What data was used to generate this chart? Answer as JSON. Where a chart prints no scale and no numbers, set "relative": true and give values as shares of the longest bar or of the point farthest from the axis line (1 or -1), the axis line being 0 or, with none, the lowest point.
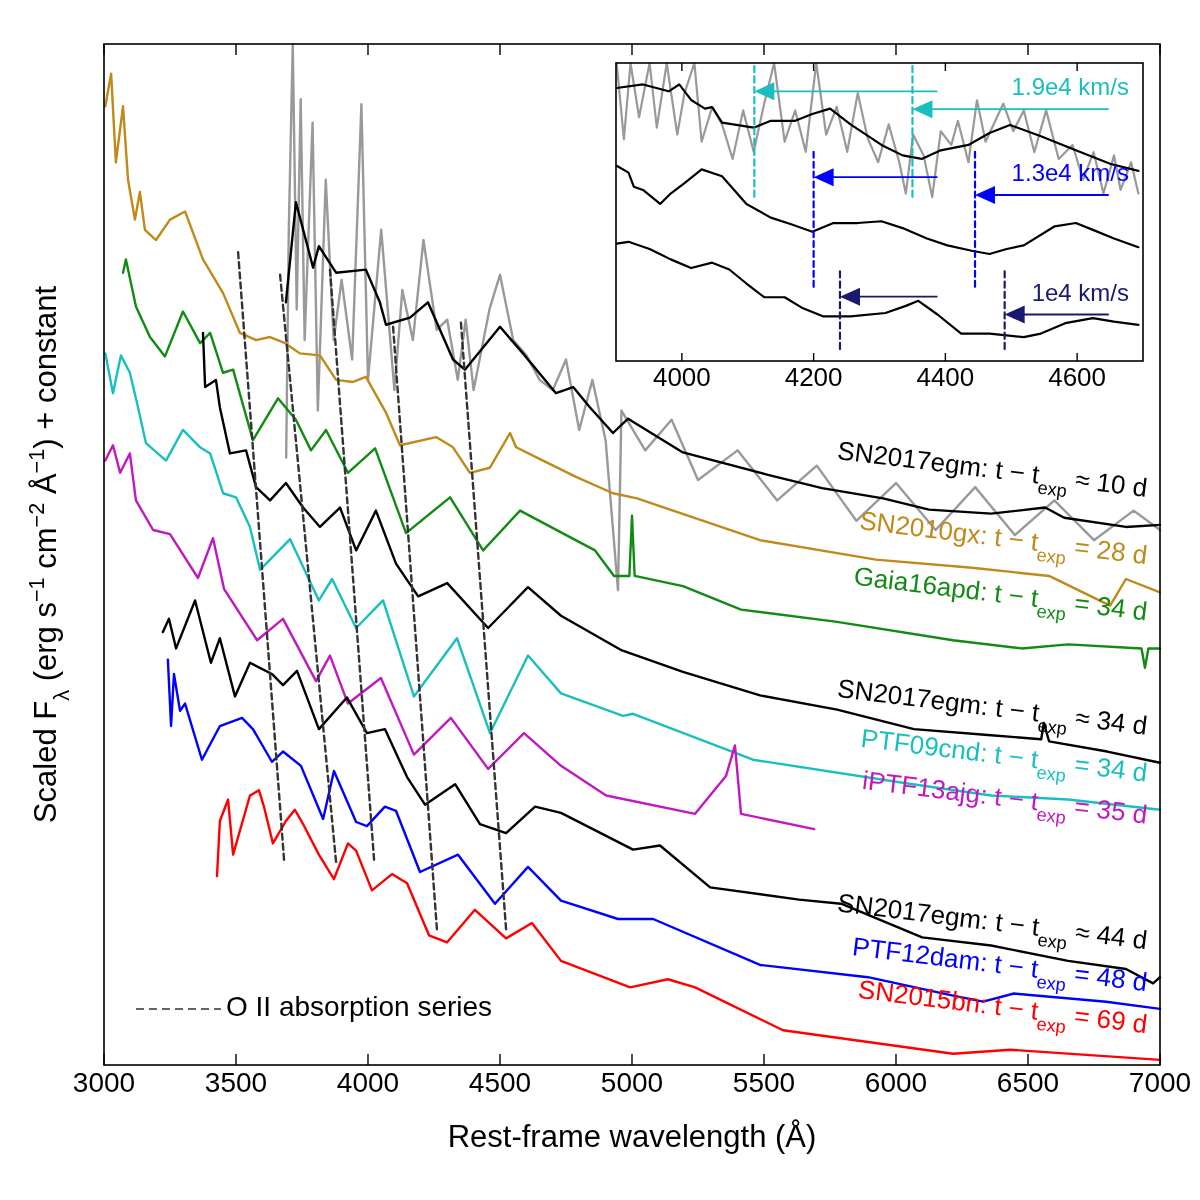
{
  "chart_data": [
    {
      "type": "line",
      "relative": true,
      "xlim": [
        3000,
        7000
      ],
      "xticks": [
        3000,
        3500,
        4000,
        4500,
        5000,
        5500,
        6000,
        6500,
        7000
      ],
      "xlabel": "Rest-frame wavelength (Å)",
      "ylabel": "Scaled F$_{λ}$ (erg s$^{−1}$ cm$^{−2}$ Å$^{−1}$) + constant",
      "legend": "bottom left",
      "series": [
        {
          "color": "#999999",
          "x": [
            3690,
            3700,
            3715,
            3730,
            3745,
            3760,
            3790,
            3810,
            3840,
            3870,
            3900,
            3940,
            3975,
            4000,
            4050,
            4100,
            4130,
            4170,
            4210,
            4260,
            4300,
            4340,
            4370,
            4400,
            4460,
            4500,
            4550,
            4600,
            4650,
            4700,
            4750,
            4800,
            4850,
            4900,
            4947,
            4960,
            5050,
            5150,
            5250,
            5400,
            5550,
            5700,
            5850,
            6000,
            6150,
            6300,
            6450,
            6600,
            6750,
            6900,
            7000
          ],
          "values": [
            0.595,
            0.818,
            1,
            0.74,
            0.946,
            0.71,
            0.923,
            0.641,
            0.867,
            0.71,
            0.769,
            0.691,
            0.941,
            0.671,
            0.818,
            0.661,
            0.759,
            0.71,
            0.808,
            0.72,
            0.73,
            0.671,
            0.73,
            0.661,
            0.74,
            0.774,
            0.71,
            0.695,
            0.671,
            0.661,
            0.691,
            0.622,
            0.671,
            0.612,
            0.465,
            0.641,
            0.602,
            0.632,
            0.573,
            0.602,
            0.553,
            0.587,
            0.533,
            0.57,
            0.524,
            0.566,
            0.519,
            0.553,
            0.514,
            0.543,
            0.524
          ]
        },
        {
          "name": "SN2017egm: t − t$_{exp}$ ≈ 10 d",
          "color": "#000000",
          "x": [
            3689,
            3727,
            3792,
            3814,
            3879,
            3992,
            4045,
            4068,
            4159,
            4227,
            4322,
            4367,
            4500,
            4587,
            4712,
            4777,
            4841,
            4928,
            4985,
            5193,
            5515,
            5720,
            5951,
            6125,
            6360,
            6565,
            6637,
            6871,
            7000
          ],
          "values": [
            0.747,
            0.845,
            0.781,
            0.802,
            0.776,
            0.779,
            0.747,
            0.725,
            0.732,
            0.747,
            0.691,
            0.681,
            0.723,
            0.697,
            0.658,
            0.664,
            0.644,
            0.619,
            0.633,
            0.6,
            0.578,
            0.565,
            0.555,
            0.544,
            0.54,
            0.546,
            0.536,
            0.527,
            0.529
          ]
        },
        {
          "name": "SN2010gx: t − t$_{exp}$ = 28 d",
          "color": "#c08a1a",
          "x": [
            3005,
            3027,
            3045,
            3072,
            3091,
            3117,
            3136,
            3155,
            3197,
            3250,
            3307,
            3375,
            3451,
            3515,
            3576,
            3629,
            3686,
            3742,
            3818,
            3879,
            3943,
            3992,
            4068,
            4121,
            4258,
            4322,
            4386,
            4462,
            4538,
            4561,
            4663,
            4788,
            4928,
            5019,
            5485,
            5924,
            6288,
            6580,
            6811,
            6871,
            7000
          ],
          "values": [
            0.939,
            0.971,
            0.884,
            0.939,
            0.867,
            0.828,
            0.855,
            0.818,
            0.808,
            0.828,
            0.836,
            0.789,
            0.756,
            0.717,
            0.71,
            0.713,
            0.707,
            0.697,
            0.695,
            0.671,
            0.669,
            0.674,
            0.639,
            0.607,
            0.615,
            0.605,
            0.58,
            0.585,
            0.619,
            0.605,
            0.592,
            0.576,
            0.56,
            0.555,
            0.514,
            0.495,
            0.487,
            0.479,
            0.45,
            0.476,
            0.463
          ]
        },
        {
          "name": "Gaia16apd: t − t$_{exp}$ = 34 d",
          "color": "#138a13",
          "x": [
            3072,
            3083,
            3121,
            3174,
            3231,
            3299,
            3364,
            3402,
            3451,
            3489,
            3564,
            3659,
            3727,
            3784,
            3841,
            3924,
            4027,
            4144,
            4311,
            4436,
            4576,
            4765,
            4860,
            4932,
            4990,
            5000,
            5010,
            5193,
            5413,
            5777,
            6216,
            6477,
            6652,
            6930,
            6943,
            6956,
            7000
          ],
          "values": [
            0.776,
            0.789,
            0.743,
            0.713,
            0.694,
            0.738,
            0.707,
            0.717,
            0.678,
            0.681,
            0.612,
            0.653,
            0.632,
            0.602,
            0.622,
            0.58,
            0.604,
            0.521,
            0.556,
            0.504,
            0.543,
            0.517,
            0.504,
            0.479,
            0.479,
            0.538,
            0.479,
            0.469,
            0.446,
            0.434,
            0.416,
            0.408,
            0.412,
            0.408,
            0.389,
            0.408,
            0.408
          ]
        },
        {
          "name": "SN2017egm: t − t$_{exp}$ ≈ 34 d",
          "color": "#000000",
          "x": [
            3375,
            3383,
            3424,
            3439,
            3477,
            3538,
            3576,
            3629,
            3689,
            3754,
            3818,
            3894,
            3955,
            4030,
            4106,
            4190,
            4300,
            4455,
            4606,
            4731,
            4962,
            5193,
            5485,
            5777,
            6068,
            6360,
            6550,
            6560,
            6580,
            6800,
            7000
          ],
          "values": [
            0.717,
            0.664,
            0.671,
            0.644,
            0.599,
            0.602,
            0.566,
            0.553,
            0.57,
            0.546,
            0.527,
            0.546,
            0.504,
            0.543,
            0.491,
            0.459,
            0.472,
            0.428,
            0.468,
            0.44,
            0.406,
            0.385,
            0.362,
            0.348,
            0.329,
            0.323,
            0.319,
            0.335,
            0.317,
            0.307,
            0.296
          ]
        },
        {
          "name": "PTF09cnd: t − t$_{exp}$ = 34 d",
          "color": "#19bfbf",
          "x": [
            3005,
            3034,
            3064,
            3098,
            3129,
            3159,
            3235,
            3299,
            3364,
            3402,
            3451,
            3500,
            3553,
            3591,
            3705,
            3814,
            3864,
            3955,
            4057,
            4174,
            4337,
            4462,
            4606,
            4731,
            4966,
            5004,
            5458,
            6038,
            6360,
            6652,
            7000
          ],
          "values": [
            0.697,
            0.658,
            0.695,
            0.678,
            0.644,
            0.609,
            0.592,
            0.622,
            0.605,
            0.599,
            0.56,
            0.556,
            0.527,
            0.485,
            0.515,
            0.455,
            0.476,
            0.428,
            0.455,
            0.361,
            0.418,
            0.325,
            0.401,
            0.364,
            0.342,
            0.344,
            0.299,
            0.276,
            0.264,
            0.26,
            0.25
          ]
        },
        {
          "name": "iPTF13ajg: t − t$_{exp}$ = 35 d",
          "color": "#bf19bf",
          "x": [
            3005,
            3034,
            3061,
            3098,
            3121,
            3186,
            3250,
            3356,
            3413,
            3455,
            3580,
            3678,
            3803,
            3856,
            3924,
            4049,
            4174,
            4314,
            4455,
            4591,
            4731,
            4902,
            5239,
            5356,
            5390,
            5413,
            5690
          ],
          "values": [
            0.592,
            0.607,
            0.58,
            0.599,
            0.553,
            0.524,
            0.52,
            0.477,
            0.516,
            0.466,
            0.416,
            0.437,
            0.376,
            0.401,
            0.354,
            0.379,
            0.304,
            0.34,
            0.29,
            0.325,
            0.293,
            0.264,
            0.246,
            0.283,
            0.313,
            0.246,
            0.231
          ]
        },
        {
          "name": "SN2017egm: t − t$_{exp}$ ≈ 44 d",
          "color": "#000000",
          "x": [
            3223,
            3246,
            3273,
            3345,
            3405,
            3439,
            3496,
            3553,
            3636,
            3678,
            3731,
            3814,
            3920,
            3996,
            4064,
            4148,
            4216,
            4330,
            4424,
            4523,
            4633,
            4731,
            5004,
            5106,
            5296,
            5633,
            5792,
            6099,
            6360,
            6652,
            6871,
            6974,
            7000
          ],
          "values": [
            0.424,
            0.437,
            0.408,
            0.455,
            0.394,
            0.418,
            0.361,
            0.394,
            0.383,
            0.372,
            0.386,
            0.329,
            0.36,
            0.325,
            0.329,
            0.282,
            0.255,
            0.275,
            0.236,
            0.227,
            0.253,
            0.247,
            0.211,
            0.215,
            0.174,
            0.162,
            0.158,
            0.125,
            0.117,
            0.102,
            0.094,
            0.08,
            0.086
          ]
        },
        {
          "name": "PTF12dam: t − t$_{exp}$ = 48 d",
          "color": "#0000ff",
          "x": [
            3242,
            3254,
            3265,
            3288,
            3307,
            3371,
            3439,
            3523,
            3564,
            3636,
            3678,
            3746,
            3830,
            3871,
            3955,
            3996,
            4064,
            4106,
            4197,
            4341,
            4481,
            4606,
            4731,
            4947,
            5080,
            5485,
            5894,
            6216,
            6330,
            6447,
            6796,
            7000
          ],
          "values": [
            0.397,
            0.332,
            0.383,
            0.347,
            0.354,
            0.299,
            0.332,
            0.34,
            0.329,
            0.297,
            0.307,
            0.293,
            0.241,
            0.288,
            0.238,
            0.234,
            0.253,
            0.249,
            0.189,
            0.206,
            0.158,
            0.194,
            0.161,
            0.143,
            0.143,
            0.098,
            0.086,
            0.068,
            0.062,
            0.07,
            0.062,
            0.055
          ]
        },
        {
          "name": "SN2015bn: t − t$_{exp}$ = 69 d",
          "color": "#ff0000",
          "x": [
            3428,
            3439,
            3470,
            3489,
            3553,
            3587,
            3606,
            3640,
            3689,
            3723,
            3754,
            3814,
            3871,
            3924,
            3955,
            4015,
            4091,
            4148,
            4231,
            4299,
            4405,
            4523,
            4621,
            4731,
            4993,
            5136,
            5239,
            5572,
            6216,
            6432,
            7000
          ],
          "values": [
            0.185,
            0.239,
            0.26,
            0.206,
            0.264,
            0.269,
            0.253,
            0.217,
            0.239,
            0.25,
            0.236,
            0.206,
            0.182,
            0.217,
            0.21,
            0.171,
            0.187,
            0.178,
            0.127,
            0.12,
            0.152,
            0.124,
            0.139,
            0.102,
            0.076,
            0.084,
            0.076,
            0.034,
            0.011,
            0.015,
            0.005
          ]
        },
        {
          "name": "O II absorption series",
          "color": "#333333",
          "line_style": "dashed",
          "x": [
            3508,
            3682
          ],
          "values": [
            0.796,
            0.201
          ]
        },
        {
          "color": "#333333",
          "line_style": "dashed",
          "x": [
            3667,
            3879
          ],
          "values": [
            0.774,
            0.199
          ]
        },
        {
          "color": "#333333",
          "line_style": "dashed",
          "x": [
            3856,
            4023
          ],
          "values": [
            0.779,
            0.201
          ]
        },
        {
          "color": "#333333",
          "line_style": "dashed",
          "x": [
            4095,
            4261
          ],
          "values": [
            0.723,
            0.133
          ]
        },
        {
          "color": "#333333",
          "line_style": "dashed",
          "x": [
            4352,
            4523
          ],
          "values": [
            0.727,
            0.133
          ]
        }
      ]
    },
    {
      "type": "line",
      "relative": true,
      "xlim": [
        3900,
        4700
      ],
      "xticks": [
        4000,
        4200,
        4400,
        4600
      ],
      "series": [
        {
          "color": "#999999",
          "x": [
            3901,
            3912,
            3922,
            3935,
            3951,
            3962,
            3977,
            3993,
            4004,
            4019,
            4030,
            4046,
            4061,
            4077,
            4093,
            4109,
            4125,
            4140,
            4156,
            4172,
            4188,
            4204,
            4219,
            4235,
            4251,
            4267,
            4282,
            4298,
            4314,
            4330,
            4340,
            4351,
            4367,
            4380,
            4393,
            4409,
            4419,
            4435,
            4448,
            4461,
            4488,
            4503,
            4519,
            4535,
            4553,
            4572,
            4593,
            4609,
            4625,
            4640,
            4656,
            4666,
            4682,
            4693
          ],
          "values": [
            1,
            0.744,
            1,
            0.818,
            1,
            0.783,
            1,
            0.76,
            0.899,
            1,
            0.736,
            0.852,
            0.794,
            0.678,
            0.841,
            0.702,
            0.864,
            1,
            0.736,
            0.841,
            0.702,
            1,
            0.76,
            0.853,
            0.702,
            0.899,
            0.748,
            0.667,
            0.794,
            0.667,
            0.562,
            0.76,
            0.69,
            0.55,
            0.771,
            0.725,
            0.806,
            0.667,
            0.875,
            0.736,
            0.864,
            0.771,
            0.841,
            0.701,
            0.841,
            0.678,
            0.725,
            0.609,
            0.701,
            0.562,
            0.69,
            0.574,
            0.667,
            0.562
          ]
        },
        {
          "color": "#000000",
          "x": [
            3901,
            3941,
            3980,
            3996,
            4014,
            4035,
            4046,
            4061,
            4109,
            4135,
            4172,
            4198,
            4225,
            4256,
            4303,
            4335,
            4364,
            4393,
            4435,
            4467,
            4498,
            4545,
            4598,
            4651,
            4693
          ],
          "values": [
            0.916,
            0.928,
            0.905,
            0.928,
            0.876,
            0.847,
            0.852,
            0.8,
            0.783,
            0.806,
            0.806,
            0.829,
            0.847,
            0.794,
            0.725,
            0.69,
            0.678,
            0.707,
            0.725,
            0.765,
            0.792,
            0.754,
            0.707,
            0.661,
            0.638
          ]
        },
        {
          "color": "#000000",
          "x": [
            3901,
            3919,
            3927,
            3941,
            3967,
            3983,
            4004,
            4030,
            4061,
            4098,
            4135,
            4167,
            4198,
            4230,
            4267,
            4303,
            4335,
            4372,
            4403,
            4440,
            4467,
            4493,
            4519,
            4566,
            4598,
            4624,
            4656,
            4693
          ],
          "values": [
            0.655,
            0.632,
            0.585,
            0.574,
            0.527,
            0.562,
            0.597,
            0.643,
            0.62,
            0.527,
            0.481,
            0.458,
            0.434,
            0.463,
            0.463,
            0.469,
            0.446,
            0.411,
            0.388,
            0.37,
            0.359,
            0.376,
            0.388,
            0.452,
            0.463,
            0.44,
            0.411,
            0.382
          ]
        },
        {
          "color": "#000000",
          "x": [
            3901,
            3919,
            3951,
            3983,
            4014,
            4046,
            4072,
            4098,
            4125,
            4156,
            4182,
            4214,
            4256,
            4309,
            4340,
            4359,
            4388,
            4424,
            4467,
            4493,
            4519,
            4545,
            4582,
            4624,
            4656,
            4693
          ],
          "values": [
            0.394,
            0.4,
            0.376,
            0.341,
            0.312,
            0.33,
            0.307,
            0.26,
            0.214,
            0.214,
            0.179,
            0.15,
            0.15,
            0.161,
            0.185,
            0.202,
            0.156,
            0.092,
            0.092,
            0.086,
            0.08,
            0.092,
            0.127,
            0.144,
            0.132,
            0.121
          ]
        },
        {
          "color": "#19bfbf",
          "line_style": "dashed",
          "x": [
            4110,
            4110
          ],
          "values": [
            0.99,
            0.551
          ]
        },
        {
          "color": "#19bfbf",
          "line_style": "dashed",
          "x": [
            4350,
            4350
          ],
          "values": [
            0.99,
            0.551
          ]
        },
        {
          "color": "#0000ff",
          "line_style": "dashed",
          "x": [
            4200,
            4200
          ],
          "values": [
            0.702,
            0.249
          ]
        },
        {
          "color": "#0000ff",
          "line_style": "dashed",
          "x": [
            4445,
            4445
          ],
          "values": [
            0.702,
            0.249
          ]
        },
        {
          "color": "#191970",
          "line_style": "dashed",
          "x": [
            4240,
            4240
          ],
          "values": [
            0.301,
            0.04
          ]
        },
        {
          "color": "#191970",
          "line_style": "dashed",
          "x": [
            4490,
            4490
          ],
          "values": [
            0.301,
            0.04
          ]
        }
      ],
      "annotations": [
        "1.9e4 km/s",
        "1.3e4 km/s",
        "1e4 km/s"
      ]
    }
  ]
}
